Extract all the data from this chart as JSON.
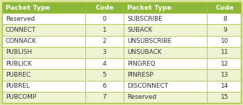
{
  "header_bg": "#8db83a",
  "header_text_color": "#ffffff",
  "row_bg_even": "#ffffff",
  "row_bg_odd": "#eef3d4",
  "cell_text_color": "#333333",
  "border_color": "#a8c040",
  "table_bg": "#dce8a0",
  "headers": [
    "Packet Type",
    "Code",
    "Packet Type",
    "Code"
  ],
  "left_data": [
    [
      "Reserved",
      "0"
    ],
    [
      "CONNECT",
      "1"
    ],
    [
      "CONNACK",
      "2"
    ],
    [
      "PUBLISH",
      "3"
    ],
    [
      "PUBLICK",
      "4"
    ],
    [
      "PUBREC",
      "5"
    ],
    [
      "PUBREL",
      "6"
    ],
    [
      "PUBCOMP",
      "7"
    ]
  ],
  "right_data": [
    [
      "SUBSCRIBE",
      "8"
    ],
    [
      "SUBACK",
      "9"
    ],
    [
      "UNSUBSCRIBE",
      "10"
    ],
    [
      "UNSUBACK",
      "11"
    ],
    [
      "PINGREQ",
      "12"
    ],
    [
      "PINRESP",
      "13"
    ],
    [
      "DISCONNECT",
      "14"
    ],
    [
      "Reserved",
      "15"
    ]
  ],
  "header_fontsize": 6.8,
  "data_fontsize": 6.5,
  "figwidth": 3.5,
  "figheight": 1.52
}
